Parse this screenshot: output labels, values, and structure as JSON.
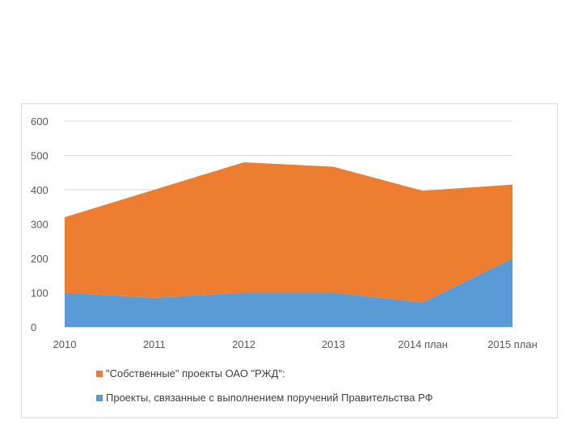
{
  "chart_data": {
    "type": "area",
    "stacked": true,
    "categories": [
      "2010",
      "2011",
      "2012",
      "2013",
      "2014 план",
      "2015 план"
    ],
    "series": [
      {
        "name": "Проекты, связанные с выполнением поручений Правительства РФ",
        "color": "#5b9bd5",
        "values": [
          100,
          85,
          100,
          100,
          72,
          200
        ]
      },
      {
        "name": "\"Собственные\" проекты ОАО \"РЖД\":",
        "color": "#ed7d31",
        "values": [
          220,
          315,
          380,
          367,
          325,
          215
        ]
      }
    ],
    "ylim": [
      0,
      600
    ],
    "yticks": [
      0,
      100,
      200,
      300,
      400,
      500,
      600
    ],
    "grid": true,
    "legend_position": "bottom",
    "legend_order": [
      1,
      0
    ]
  }
}
